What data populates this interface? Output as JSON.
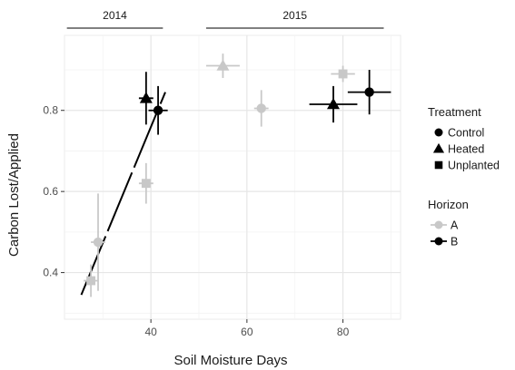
{
  "chart_data": {
    "type": "scatter",
    "xlabel": "Soil Moisture Days",
    "ylabel": "Carbon Lost/Applied",
    "xlim": [
      22,
      92
    ],
    "ylim": [
      0.285,
      0.985
    ],
    "xticks": [
      40,
      60,
      80
    ],
    "yticks": [
      0.4,
      0.6,
      0.8
    ],
    "xtick_labels": [
      "40",
      "60",
      "80"
    ],
    "ytick_labels": [
      "0.4",
      "0.6",
      "0.8"
    ],
    "grid": true,
    "year_brackets": [
      {
        "label": "2014",
        "from": 22.5,
        "to": 42.5
      },
      {
        "label": "2015",
        "from": 51.5,
        "to": 88.5
      }
    ],
    "points": [
      {
        "treatment": "Unplanted",
        "horizon": "A",
        "x": 27.5,
        "y": 0.38,
        "xerr": 1.5,
        "yerr": 0.04
      },
      {
        "treatment": "Control",
        "horizon": "A",
        "x": 29,
        "y": 0.475,
        "xerr": 1.5,
        "yerr": 0.12
      },
      {
        "treatment": "Unplanted",
        "horizon": "A",
        "x": 39,
        "y": 0.62,
        "xerr": 1.5,
        "yerr": 0.05
      },
      {
        "treatment": "Heated",
        "horizon": "B",
        "x": 39,
        "y": 0.83,
        "xerr": 1.5,
        "yerr": 0.065
      },
      {
        "treatment": "Control",
        "horizon": "B",
        "x": 41.5,
        "y": 0.8,
        "xerr": 2,
        "yerr": 0.06
      },
      {
        "treatment": "Heated",
        "horizon": "A",
        "x": 55,
        "y": 0.91,
        "xerr": 3.5,
        "yerr": 0.03
      },
      {
        "treatment": "Control",
        "horizon": "A",
        "x": 63,
        "y": 0.805,
        "xerr": 1.5,
        "yerr": 0.045
      },
      {
        "treatment": "Heated",
        "horizon": "B",
        "x": 78,
        "y": 0.815,
        "xerr": 5,
        "yerr": 0.045
      },
      {
        "treatment": "Unplanted",
        "horizon": "A",
        "x": 80,
        "y": 0.89,
        "xerr": 2.5,
        "yerr": 0.02
      },
      {
        "treatment": "Control",
        "horizon": "B",
        "x": 85.5,
        "y": 0.845,
        "xerr": 4.5,
        "yerr": 0.055
      }
    ],
    "fit_line": {
      "x": [
        25.5,
        43
      ],
      "y": [
        0.345,
        0.845
      ],
      "style": "long-dash",
      "color": "#000000"
    },
    "colors": {
      "A": "#c8c8c8",
      "B": "#000000"
    },
    "legend": {
      "placement": "right",
      "treatment_title": "Treatment",
      "treatment_items": [
        {
          "label": "Control",
          "shape": "circle"
        },
        {
          "label": "Heated",
          "shape": "triangle"
        },
        {
          "label": "Unplanted",
          "shape": "square"
        }
      ],
      "horizon_title": "Horizon",
      "horizon_items": [
        {
          "label": "A",
          "color": "#c8c8c8"
        },
        {
          "label": "B",
          "color": "#000000"
        }
      ]
    }
  }
}
